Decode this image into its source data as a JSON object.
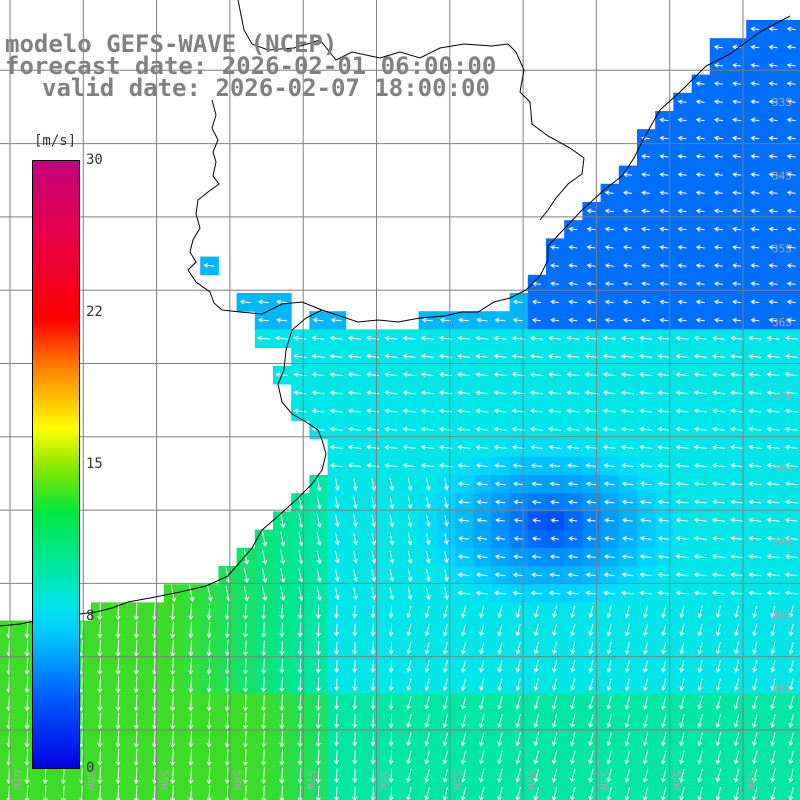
{
  "titles": {
    "line1": "modelo GEFS-WAVE (NCEP)",
    "line2": "forecast date: 2026-02-01 06:00:00",
    "line3": "valid date: 2026-02-07 18:00:00"
  },
  "colorbar": {
    "unit": "[m/s]",
    "ticks": [
      "30",
      "22",
      "15",
      "8",
      "0"
    ],
    "range": [
      0,
      30
    ],
    "colors": [
      "#0000e6",
      "#0060ff",
      "#00c8ff",
      "#00e640",
      "#ffff00",
      "#ff8000",
      "#ff0000",
      "#c3007f"
    ]
  },
  "grid": {
    "lon_labels": [
      "61W",
      "60W",
      "59W",
      "58W",
      "57W",
      "56W",
      "55W",
      "54W",
      "53W",
      "52W",
      "51W"
    ],
    "lat_labels": [
      "33S",
      "34S",
      "35S",
      "36S",
      "37S",
      "38S",
      "39S",
      "40S",
      "41S"
    ]
  },
  "colors": {
    "land": "#ffffff",
    "grid_line": "#7f7f7f",
    "coast": "#000000",
    "arrow": "#ffffff",
    "title": "#808080"
  }
}
